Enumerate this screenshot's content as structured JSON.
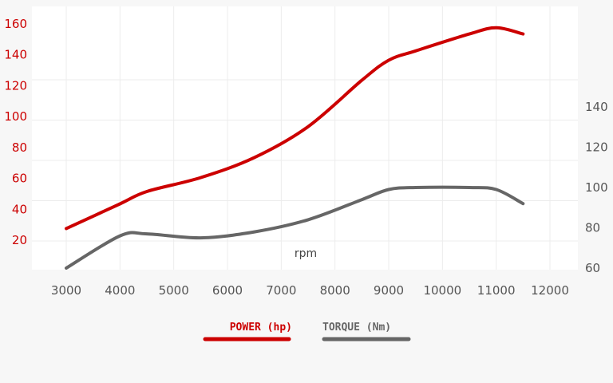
{
  "colors": {
    "power": "#cc0000",
    "torque": "#666666",
    "grid": "#ececec",
    "background": "#f7f7f7",
    "plot_background": "#ffffff"
  },
  "chart_data": {
    "type": "line",
    "title": "",
    "xlabel": "rpm",
    "x_ticks": [
      "3000",
      "4000",
      "5000",
      "6000",
      "7000",
      "8000",
      "9000",
      "10000",
      "11000",
      "12000"
    ],
    "xlim": [
      3000,
      12000
    ],
    "y_left": {
      "label": "",
      "ticks": [
        "20",
        "40",
        "60",
        "80",
        "100",
        "120",
        "140",
        "160"
      ],
      "ylim": [
        0,
        160
      ]
    },
    "y_right": {
      "label": "",
      "ticks": [
        "60",
        "80",
        "100",
        "120",
        "140"
      ],
      "ylim": [
        60,
        140
      ]
    },
    "grid": true,
    "legend_position": "bottom",
    "series": [
      {
        "name": "POWER (hp)",
        "axis": "left",
        "color": "#cc0000",
        "x": [
          3000,
          4000,
          4500,
          5500,
          6500,
          7500,
          8500,
          9000,
          9500,
          10500,
          11000,
          11500
        ],
        "y": [
          27,
          43,
          51,
          60,
          73,
          93,
          123,
          136,
          142,
          153,
          157,
          153
        ]
      },
      {
        "name": "TORQUE (Nm)",
        "axis": "right",
        "color": "#666666",
        "x": [
          3000,
          4000,
          4500,
          5500,
          6500,
          7500,
          8500,
          9000,
          9500,
          10500,
          11000,
          11500
        ],
        "y": [
          60,
          76,
          77,
          75,
          78,
          84,
          94,
          99,
          100,
          100,
          99,
          92
        ]
      }
    ]
  }
}
